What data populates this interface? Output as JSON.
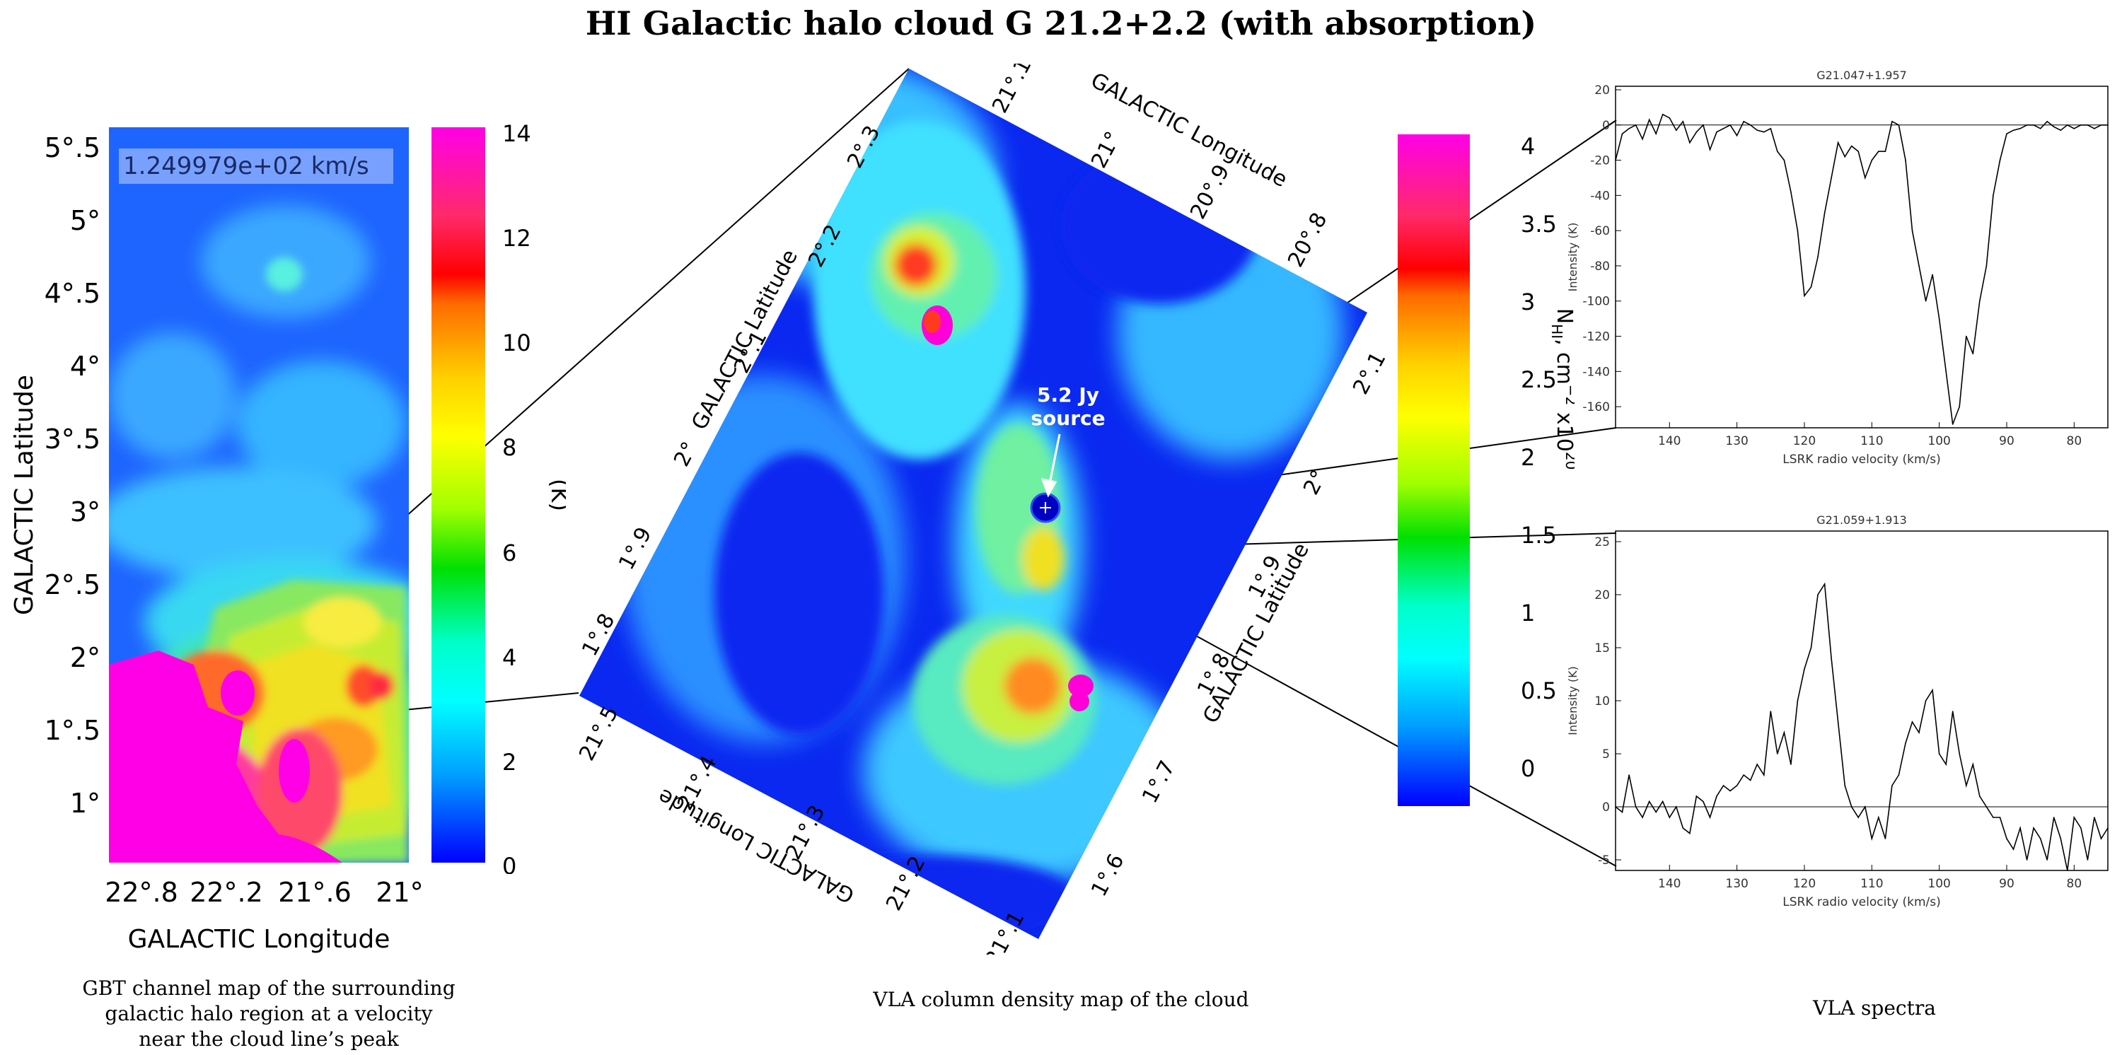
{
  "title": "HI Galactic halo cloud G 21.2+2.2 (with absorption)",
  "gbt_panel": {
    "velocity_label": "1.249979e+02 km/s",
    "xlabel": "GALACTIC Longitude",
    "ylabel": "GALACTIC Latitude",
    "x_ticks": [
      "22°.8",
      "22°.2",
      "21°.6",
      "21°"
    ],
    "y_ticks": [
      "5°.5",
      "5°",
      "4°.5",
      "4°",
      "3°.5",
      "3°",
      "2°.5",
      "2°",
      "1°.5",
      "1°"
    ],
    "colorbar_ticks": [
      "14",
      "12",
      "10",
      "8",
      "6",
      "4",
      "2",
      "0"
    ],
    "colorbar_label": "(K)",
    "caption_lines": [
      "GBT channel map of the surrounding",
      "galactic halo region at a velocity",
      "near the cloud line’s peak"
    ]
  },
  "vla_map": {
    "annotation_lines": [
      "5.2 Jy",
      "source"
    ],
    "left_lat_label": "GALACTIC Latitude",
    "left_lat_ticks": [
      "2°.3",
      "2°.2",
      "2°.1",
      "2°",
      "1°.9",
      "1°.8"
    ],
    "top_lon_label": "GALACTIC Longitude",
    "top_lon_ticks": [
      "21°.1",
      "21°",
      "20°.9",
      "20°.8"
    ],
    "right_lat_label": "GALACTIC Latitude",
    "right_lat_ticks": [
      "2°.1",
      "2°",
      "1°.9",
      "1°.8",
      "1°.7",
      "1°.6"
    ],
    "bottom_lon_label": "GALACTIC Longitude",
    "bottom_lon_ticks": [
      "21°.5",
      "21°.4",
      "21°.3",
      "21°.2",
      "21°.1"
    ],
    "caption": "VLA column density map of the cloud"
  },
  "colorbar2": {
    "ticks": [
      "4",
      "3.5",
      "3",
      "2.5",
      "2",
      "1.5",
      "1",
      "0.5",
      "0"
    ],
    "label_parts": [
      "N",
      "HI",
      ", cm",
      "−2",
      " x10",
      "20"
    ]
  },
  "spectra_caption": "VLA spectra",
  "colors": {
    "line": "#000000",
    "gbt_background": "#1e64ff",
    "vla_background": "#0a28f0"
  },
  "chart_data": [
    {
      "type": "line",
      "title": "G21.047+1.957",
      "xlabel": "LSRK radio velocity (km/s)",
      "ylabel": "Intensity (K)",
      "xlim": [
        148,
        75
      ],
      "ylim": [
        -172,
        22
      ],
      "x_ticks": [
        140,
        130,
        120,
        110,
        100,
        90,
        80
      ],
      "y_ticks": [
        20,
        0,
        -20,
        -40,
        -60,
        -80,
        -100,
        -120,
        -140,
        -160
      ],
      "zero_line": true,
      "x": [
        148,
        147,
        146,
        145,
        144,
        143,
        142,
        141,
        140,
        139,
        138,
        137,
        136,
        135,
        134,
        133,
        132,
        131,
        130,
        129,
        128,
        127,
        126,
        125,
        124,
        123,
        122,
        121,
        120,
        119,
        118,
        117,
        116,
        115,
        114,
        113,
        112,
        111,
        110,
        109,
        108,
        107,
        106,
        105,
        104,
        103,
        102,
        101,
        100,
        99,
        98,
        97,
        96,
        95,
        94,
        93,
        92,
        91,
        90,
        89,
        88,
        87,
        86,
        85,
        84,
        83,
        82,
        81,
        80,
        79,
        78,
        77,
        76,
        75
      ],
      "values": [
        -20,
        -5,
        -2,
        0,
        -8,
        3,
        -5,
        6,
        4,
        -3,
        2,
        -10,
        -4,
        0,
        -14,
        -4,
        -2,
        0,
        -6,
        2,
        0,
        -3,
        -4,
        -2,
        -15,
        -20,
        -38,
        -60,
        -97,
        -92,
        -75,
        -50,
        -30,
        -10,
        -18,
        -12,
        -15,
        -30,
        -20,
        -15,
        -15,
        2,
        0,
        -20,
        -60,
        -80,
        -100,
        -85,
        -110,
        -140,
        -170,
        -160,
        -120,
        -130,
        -100,
        -80,
        -40,
        -20,
        -5,
        -3,
        -2,
        0,
        0,
        -2,
        2,
        -1,
        -3,
        0,
        -2,
        0,
        0,
        -2,
        0,
        0
      ]
    },
    {
      "type": "line",
      "title": "G21.059+1.913",
      "xlabel": "LSRK radio velocity (km/s)",
      "ylabel": "Intensity (K)",
      "xlim": [
        148,
        75
      ],
      "ylim": [
        -6,
        26
      ],
      "x_ticks": [
        140,
        130,
        120,
        110,
        100,
        90,
        80
      ],
      "y_ticks": [
        25,
        20,
        15,
        10,
        5,
        0,
        -5
      ],
      "zero_line": true,
      "x": [
        148,
        147,
        146,
        145,
        144,
        143,
        142,
        141,
        140,
        139,
        138,
        137,
        136,
        135,
        134,
        133,
        132,
        131,
        130,
        129,
        128,
        127,
        126,
        125,
        124,
        123,
        122,
        121,
        120,
        119,
        118,
        117,
        116,
        115,
        114,
        113,
        112,
        111,
        110,
        109,
        108,
        107,
        106,
        105,
        104,
        103,
        102,
        101,
        100,
        99,
        98,
        97,
        96,
        95,
        94,
        93,
        92,
        91,
        90,
        89,
        88,
        87,
        86,
        85,
        84,
        83,
        82,
        81,
        80,
        79,
        78,
        77,
        76,
        75
      ],
      "values": [
        0,
        -0.5,
        3,
        0,
        -1,
        0.5,
        -0.5,
        0.5,
        -1,
        0,
        -2,
        -2.5,
        1,
        0.5,
        -1,
        1,
        2,
        1.5,
        2,
        3,
        2.5,
        4,
        3,
        9,
        5,
        7,
        4,
        10,
        13,
        15,
        20,
        21,
        14,
        8,
        2,
        0,
        -1,
        0,
        -3,
        -1,
        -3,
        2,
        3,
        6,
        8,
        7,
        10,
        11,
        5,
        4,
        9,
        5,
        2,
        4,
        1,
        0,
        -1,
        -1,
        -3,
        -4,
        -2,
        -5,
        -2,
        -3,
        -5,
        -1,
        -3,
        -6,
        -1,
        -2,
        -5,
        -1,
        -3,
        -2
      ]
    }
  ]
}
